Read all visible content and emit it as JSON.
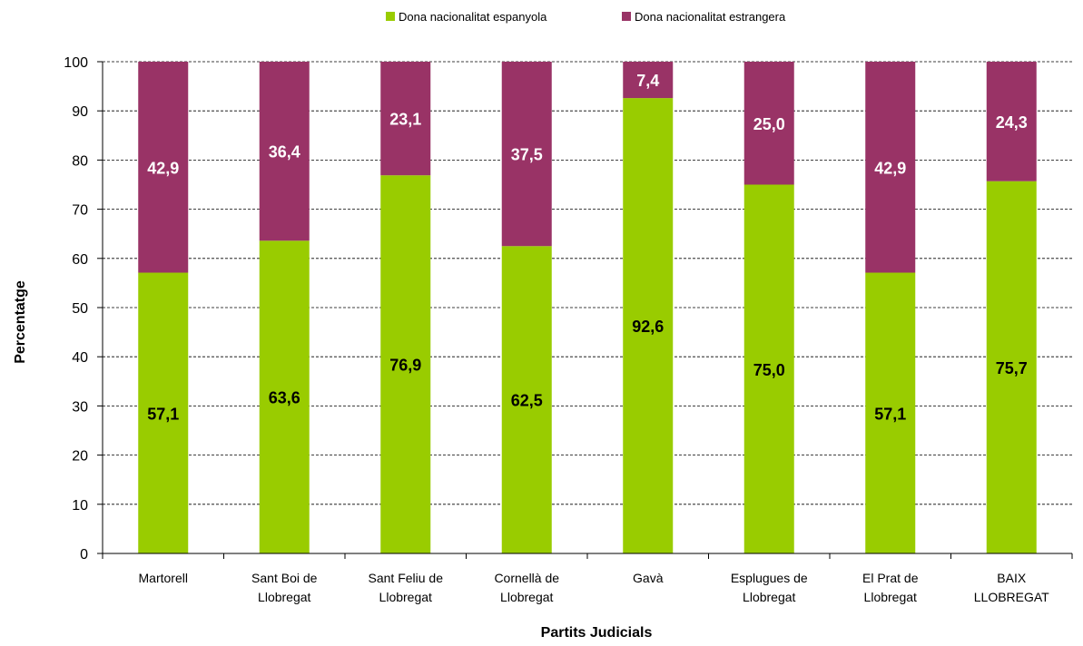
{
  "chart_data": {
    "type": "bar",
    "stacked": true,
    "categories": [
      [
        "Martorell"
      ],
      [
        "Sant Boi de",
        "Llobregat"
      ],
      [
        "Sant Feliu de",
        "Llobregat"
      ],
      [
        "Cornellà de",
        "Llobregat"
      ],
      [
        "Gavà"
      ],
      [
        "Esplugues de",
        "Llobregat"
      ],
      [
        "El Prat de",
        "Llobregat"
      ],
      [
        "BAIX",
        "LLOBREGAT"
      ]
    ],
    "series": [
      {
        "name": "Dona nacionalitat espanyola",
        "color": "#99cc00",
        "label_color": "#000000",
        "values": [
          57.1,
          63.6,
          76.9,
          62.5,
          92.6,
          75.0,
          57.1,
          75.7
        ],
        "labels": [
          "57,1",
          "63,6",
          "76,9",
          "62,5",
          "92,6",
          "75,0",
          "57,1",
          "75,7"
        ]
      },
      {
        "name": "Dona nacionalitat estrangera",
        "color": "#993366",
        "label_color": "#ffffff",
        "values": [
          42.9,
          36.4,
          23.1,
          37.5,
          7.4,
          25.0,
          42.9,
          24.3
        ],
        "labels": [
          "42,9",
          "36,4",
          "23,1",
          "37,5",
          "7,4",
          "25,0",
          "42,9",
          "24,3"
        ]
      }
    ],
    "xlabel": "Partits Judicials",
    "ylabel": "Percentatge",
    "ylim": [
      0,
      100
    ],
    "yticks": [
      0,
      10,
      20,
      30,
      40,
      50,
      60,
      70,
      80,
      90,
      100
    ],
    "grid": true,
    "legend": "top-center"
  }
}
